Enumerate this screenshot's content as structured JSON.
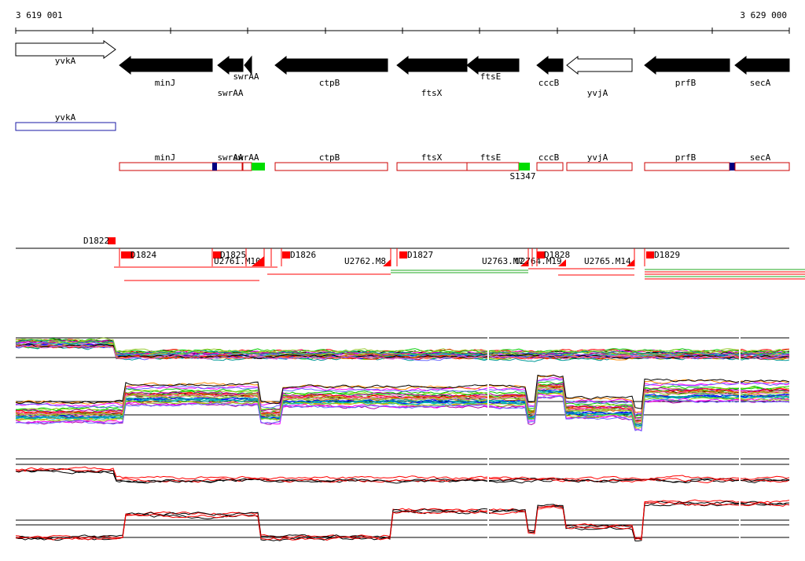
{
  "ruler": {
    "start_label": "3 619 001",
    "end_label": "3 629 000",
    "start_bp": 3619001,
    "end_bp": 3629000
  },
  "genes": [
    {
      "name": "yvkA",
      "dir": "fwd",
      "filled": false
    },
    {
      "name": "minJ",
      "dir": "rev",
      "filled": true
    },
    {
      "name": "swrAA",
      "dir": "rev",
      "filled": true
    },
    {
      "name": "swrAA",
      "dir": "rev",
      "filled": true
    },
    {
      "name": "ctpB",
      "dir": "rev",
      "filled": true
    },
    {
      "name": "ftsX",
      "dir": "rev",
      "filled": true
    },
    {
      "name": "ftsE",
      "dir": "rev",
      "filled": true
    },
    {
      "name": "cccB",
      "dir": "rev",
      "filled": true
    },
    {
      "name": "yvjA",
      "dir": "rev",
      "filled": false
    },
    {
      "name": "prfB",
      "dir": "rev",
      "filled": true
    },
    {
      "name": "secA",
      "dir": "rev",
      "filled": true
    }
  ],
  "boxes_top": [
    {
      "name": "yvkA",
      "color": "#1a1aa6"
    }
  ],
  "boxes": [
    {
      "name": "minJ"
    },
    {
      "name": "swrAA"
    },
    {
      "name": "swrAA"
    },
    {
      "name": "ctpB"
    },
    {
      "name": "ftsX"
    },
    {
      "name": "ftsE"
    },
    {
      "name": "cccB"
    },
    {
      "name": "yvjA"
    },
    {
      "name": "prfB"
    },
    {
      "name": "secA"
    }
  ],
  "box_annotation": "S1347",
  "features": [
    {
      "label": "D1822"
    },
    {
      "label": "D1824"
    },
    {
      "label": "D1825"
    },
    {
      "label": "U2761.M10"
    },
    {
      "label": "D1826"
    },
    {
      "label": "U2762.M8"
    },
    {
      "label": "D1827"
    },
    {
      "label": "U2763.M7"
    },
    {
      "label": "U2764.M19"
    },
    {
      "label": "D1828"
    },
    {
      "label": "U2765.M14"
    },
    {
      "label": "D1829"
    }
  ],
  "colors": {
    "gene_fill": "#000000",
    "box_stroke": "#cc0000",
    "feature_red": "#ff0000",
    "marker_blue": "#000080",
    "marker_green": "#00dd00",
    "track_green": "#22aa22",
    "profile_black": "#000000",
    "profile_red": "#ff0000"
  }
}
